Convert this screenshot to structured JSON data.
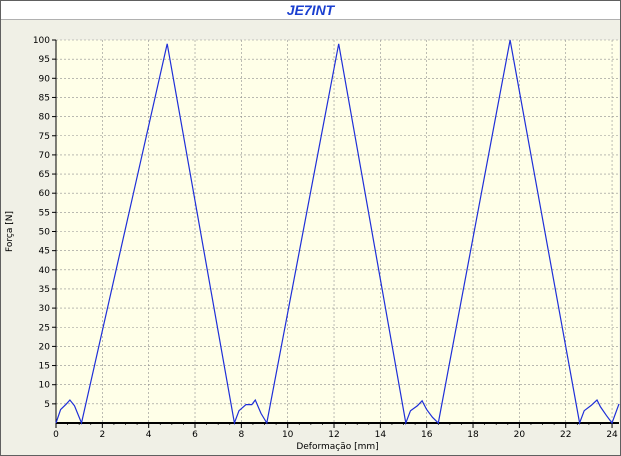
{
  "colors": {
    "title": "#1a3fd0",
    "series": "#1f2fd8",
    "plot_bg": "#ffffe8",
    "grid": "#909090"
  },
  "chart_data": {
    "type": "line",
    "title": "JE7INT",
    "xlabel": "Deformação [mm]",
    "ylabel": "Força [N]",
    "xlim": [
      0,
      24.3
    ],
    "ylim": [
      0,
      100
    ],
    "xticks": [
      "0",
      "2",
      "4",
      "6",
      "8",
      "10",
      "12",
      "14",
      "16",
      "18",
      "20",
      "22",
      "24"
    ],
    "yticks": [
      "5",
      "10",
      "15",
      "20",
      "25",
      "30",
      "35",
      "40",
      "45",
      "50",
      "55",
      "60",
      "65",
      "70",
      "75",
      "80",
      "85",
      "90",
      "95",
      "100"
    ],
    "grid": true,
    "legend": "none",
    "series": [
      {
        "x": [
          0,
          0.2,
          0.45,
          0.6,
          0.8,
          1.1,
          4.8,
          7.7,
          7.9,
          8.2,
          8.45,
          8.6,
          8.85,
          9.1,
          12.2,
          15.1,
          15.3,
          15.6,
          15.8,
          16.0,
          16.25,
          16.5,
          19.6,
          22.6,
          22.8,
          23.1,
          23.35,
          23.5,
          23.75,
          24.0,
          24.3
        ],
        "y": [
          0,
          3.5,
          5,
          6,
          4.5,
          0,
          99,
          0,
          3.2,
          4.8,
          4.8,
          6,
          2.5,
          0,
          99,
          0,
          3.2,
          4.5,
          5.8,
          3.5,
          1.5,
          0,
          100,
          0,
          3.2,
          4.6,
          6,
          4.2,
          2,
          0,
          5
        ]
      }
    ]
  }
}
